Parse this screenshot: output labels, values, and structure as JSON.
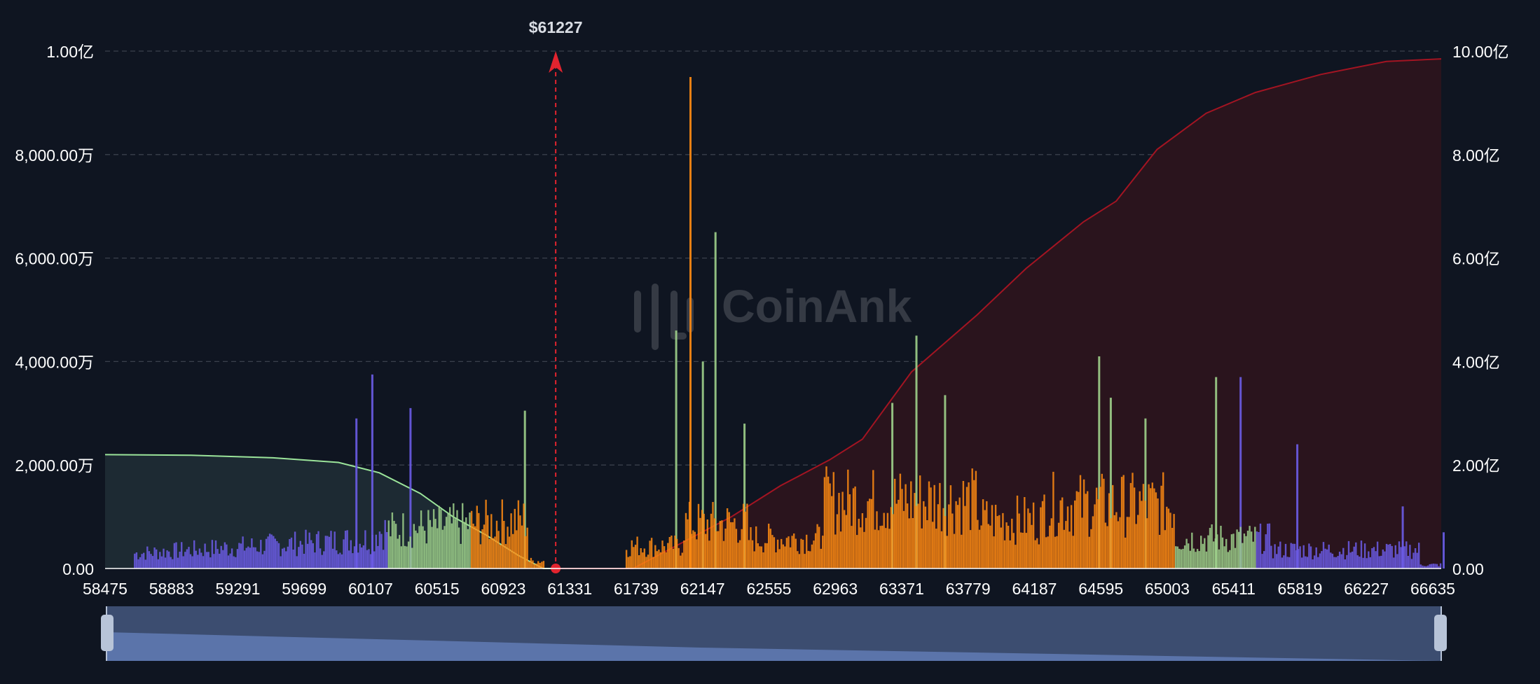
{
  "watermark": "CoinAnk",
  "current_price_label": "$61227",
  "colors": {
    "background": "#0f1521",
    "grid": "#3a404c",
    "axis_text": "#ffffff",
    "long_cum_line": "#9be49a",
    "long_cum_fill": "#1d2a33",
    "short_cum_line": "#a31422",
    "short_cum_fill": "#2a141d",
    "price_marker": "#e2242f",
    "bar_low": "#6c5ce7",
    "bar_mid": "#9ed08b",
    "bar_high": "#ff8b12",
    "zoom_track": "#3c4d70",
    "zoom_fill": "#5b74aa",
    "zoom_handle": "#b8c4d8"
  },
  "chart_data": {
    "type": "bar",
    "title": "",
    "x_axis": {
      "ticks": [
        "58475",
        "58883",
        "59291",
        "59699",
        "60107",
        "60515",
        "60923",
        "61331",
        "61739",
        "62147",
        "62555",
        "62963",
        "63371",
        "63779",
        "64187",
        "64595",
        "65003",
        "65411",
        "65819",
        "66227",
        "66635"
      ],
      "range": [
        58475,
        66635
      ]
    },
    "y_left": {
      "ticks": [
        "0.00",
        "2,000.00万",
        "4,000.00万",
        "6,000.00万",
        "8,000.00万",
        "1.00亿"
      ],
      "range": [
        0,
        100000000
      ]
    },
    "y_right": {
      "ticks": [
        "0.00",
        "2.00亿",
        "4.00亿",
        "6.00亿",
        "8.00亿",
        "10.00亿"
      ],
      "range": [
        0,
        1000000000
      ]
    },
    "current_price": 61227,
    "grid": true,
    "series": [
      {
        "type": "area",
        "axis": "right",
        "points": [
          [
            58475,
            220000000
          ],
          [
            59000,
            219000000
          ],
          [
            59500,
            214000000
          ],
          [
            59900,
            205000000
          ],
          [
            60150,
            185000000
          ],
          [
            60400,
            145000000
          ],
          [
            60600,
            100000000
          ],
          [
            60800,
            65000000
          ],
          [
            61000,
            25000000
          ],
          [
            61150,
            0
          ],
          [
            61227,
            0
          ]
        ]
      },
      {
        "type": "area",
        "axis": "right",
        "points": [
          [
            61227,
            0
          ],
          [
            61700,
            0
          ],
          [
            62000,
            50000000
          ],
          [
            62300,
            100000000
          ],
          [
            62600,
            160000000
          ],
          [
            62900,
            210000000
          ],
          [
            63100,
            250000000
          ],
          [
            63400,
            380000000
          ],
          [
            63800,
            490000000
          ],
          [
            64100,
            580000000
          ],
          [
            64450,
            670000000
          ],
          [
            64650,
            710000000
          ],
          [
            64900,
            810000000
          ],
          [
            65200,
            880000000
          ],
          [
            65500,
            920000000
          ],
          [
            65900,
            955000000
          ],
          [
            66300,
            980000000
          ],
          [
            66635,
            985000000
          ]
        ]
      },
      {
        "type": "bar",
        "axis": "left",
        "values": [
          [
            60107,
            37500000
          ],
          [
            60010,
            29000000
          ],
          [
            60340,
            31000000
          ],
          [
            61039,
            30500000
          ],
          [
            61963,
            46000000
          ],
          [
            62050,
            95000000
          ],
          [
            62126,
            40000000
          ],
          [
            62203,
            65000000
          ],
          [
            62380,
            28000000
          ],
          [
            63283,
            32000000
          ],
          [
            63430,
            45000000
          ],
          [
            63605,
            33500000
          ],
          [
            64546,
            41000000
          ],
          [
            64617,
            33000000
          ],
          [
            64829,
            29000000
          ],
          [
            65260,
            37000000
          ],
          [
            65410,
            37000000
          ],
          [
            65756,
            24000000
          ],
          [
            66400,
            12000000
          ],
          [
            66650,
            7000000
          ]
        ]
      }
    ]
  }
}
